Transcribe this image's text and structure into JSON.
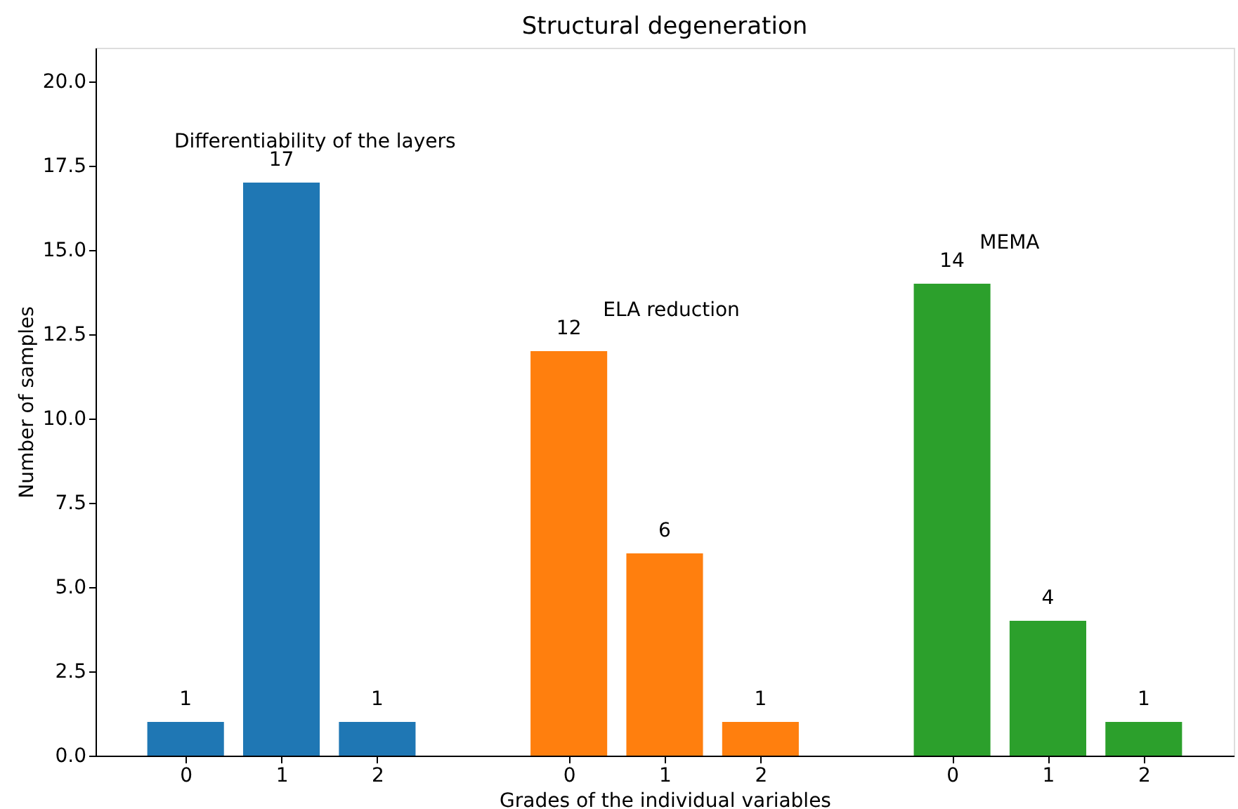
{
  "chart_data": {
    "type": "bar",
    "title": "Structural degeneration",
    "xlabel": "Grades of the individual variables",
    "ylabel": "Number of samples",
    "categories": [
      "0",
      "1",
      "2",
      null,
      "0",
      "1",
      "2",
      null,
      "0",
      "1",
      "2"
    ],
    "series": [
      {
        "name": "Differentiability of the layers",
        "values": [
          1,
          17,
          1,
          null,
          null,
          null,
          null,
          null,
          null,
          null,
          null
        ],
        "color": "#1f77b4"
      },
      {
        "name": "ELA reduction",
        "values": [
          null,
          null,
          null,
          null,
          12,
          6,
          1,
          null,
          null,
          null,
          null
        ],
        "color": "#ff7f0e"
      },
      {
        "name": "MEMA",
        "values": [
          null,
          null,
          null,
          null,
          null,
          null,
          null,
          null,
          14,
          4,
          1
        ],
        "color": "#2ca02c"
      }
    ],
    "ylim": [
      0,
      21
    ],
    "yticks": [
      {
        "value": 0,
        "label": "0.0"
      },
      {
        "value": 2.5,
        "label": "2.5"
      },
      {
        "value": 5,
        "label": "5.0"
      },
      {
        "value": 7.5,
        "label": "7.5"
      },
      {
        "value": 10,
        "label": "10.0"
      },
      {
        "value": 12.5,
        "label": "12.5"
      },
      {
        "value": 15,
        "label": "15.0"
      },
      {
        "value": 17.5,
        "label": "17.5"
      },
      {
        "value": 20,
        "label": "20.0"
      }
    ],
    "data_labels": true,
    "grid": false
  }
}
